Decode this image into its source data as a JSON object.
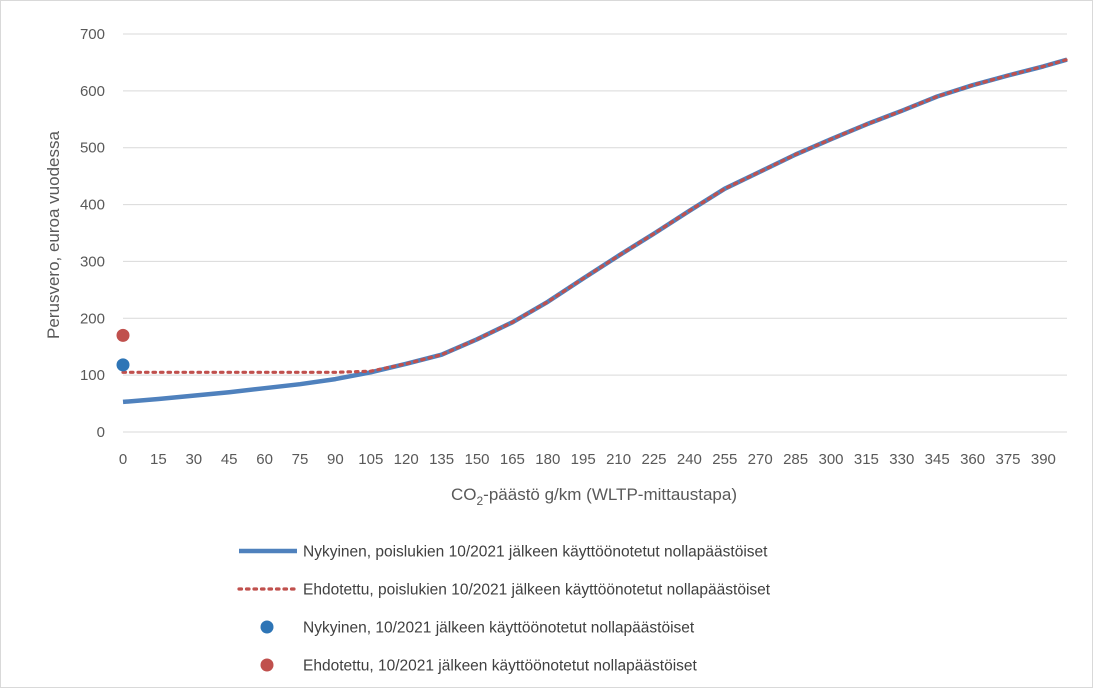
{
  "chart_data": {
    "type": "line",
    "title": "",
    "xlabel": {
      "prefix": "CO",
      "subscript": "2",
      "suffix": "-päästö g/km (WLTP-mittaustapa)"
    },
    "ylabel": "Perusvero, euroa vuodessa",
    "xlim": [
      0,
      400
    ],
    "ylim": [
      0,
      700
    ],
    "x_ticks": [
      0,
      15,
      30,
      45,
      60,
      75,
      90,
      105,
      120,
      135,
      150,
      165,
      180,
      195,
      210,
      225,
      240,
      255,
      270,
      285,
      300,
      315,
      330,
      345,
      360,
      375,
      390
    ],
    "y_ticks": [
      0,
      100,
      200,
      300,
      400,
      500,
      600,
      700
    ],
    "grid": true,
    "legend_position": "bottom",
    "series": [
      {
        "name": "Nykyinen, poislukien 10/2021 jälkeen käyttöönotetut nollapäästöiset",
        "style": "solid-line",
        "color": "#4f81bd",
        "x": [
          0,
          15,
          30,
          45,
          60,
          75,
          90,
          105,
          120,
          135,
          150,
          165,
          180,
          195,
          210,
          225,
          240,
          255,
          270,
          285,
          300,
          315,
          330,
          345,
          360,
          375,
          390,
          400
        ],
        "y": [
          53,
          58,
          64,
          70,
          77,
          84,
          93,
          105,
          120,
          136,
          163,
          193,
          229,
          270,
          310,
          349,
          389,
          428,
          458,
          488,
          515,
          541,
          565,
          590,
          610,
          627,
          643,
          655
        ]
      },
      {
        "name": "Ehdotettu, poislukien 10/2021 jälkeen käyttöönotetut nollapäästöiset",
        "style": "dotted-line",
        "color": "#c0504d",
        "x": [
          0,
          15,
          30,
          45,
          60,
          75,
          90,
          105,
          120,
          135,
          150,
          165,
          180,
          195,
          210,
          225,
          240,
          255,
          270,
          285,
          300,
          315,
          330,
          345,
          360,
          375,
          390,
          400
        ],
        "y": [
          105,
          105,
          105,
          105,
          105,
          105,
          105,
          107,
          120,
          136,
          163,
          193,
          229,
          270,
          310,
          349,
          389,
          428,
          458,
          488,
          515,
          541,
          565,
          590,
          610,
          627,
          643,
          655
        ]
      },
      {
        "name": "Nykyinen, 10/2021 jälkeen käyttöönotetut nollapäästöiset",
        "style": "marker",
        "color": "#2e75b6",
        "x": [
          0
        ],
        "y": [
          118
        ]
      },
      {
        "name": "Ehdotettu, 10/2021 jälkeen käyttöönotetut nollapäästöiset",
        "style": "marker",
        "color": "#c0504d",
        "x": [
          0
        ],
        "y": [
          170
        ]
      }
    ]
  }
}
